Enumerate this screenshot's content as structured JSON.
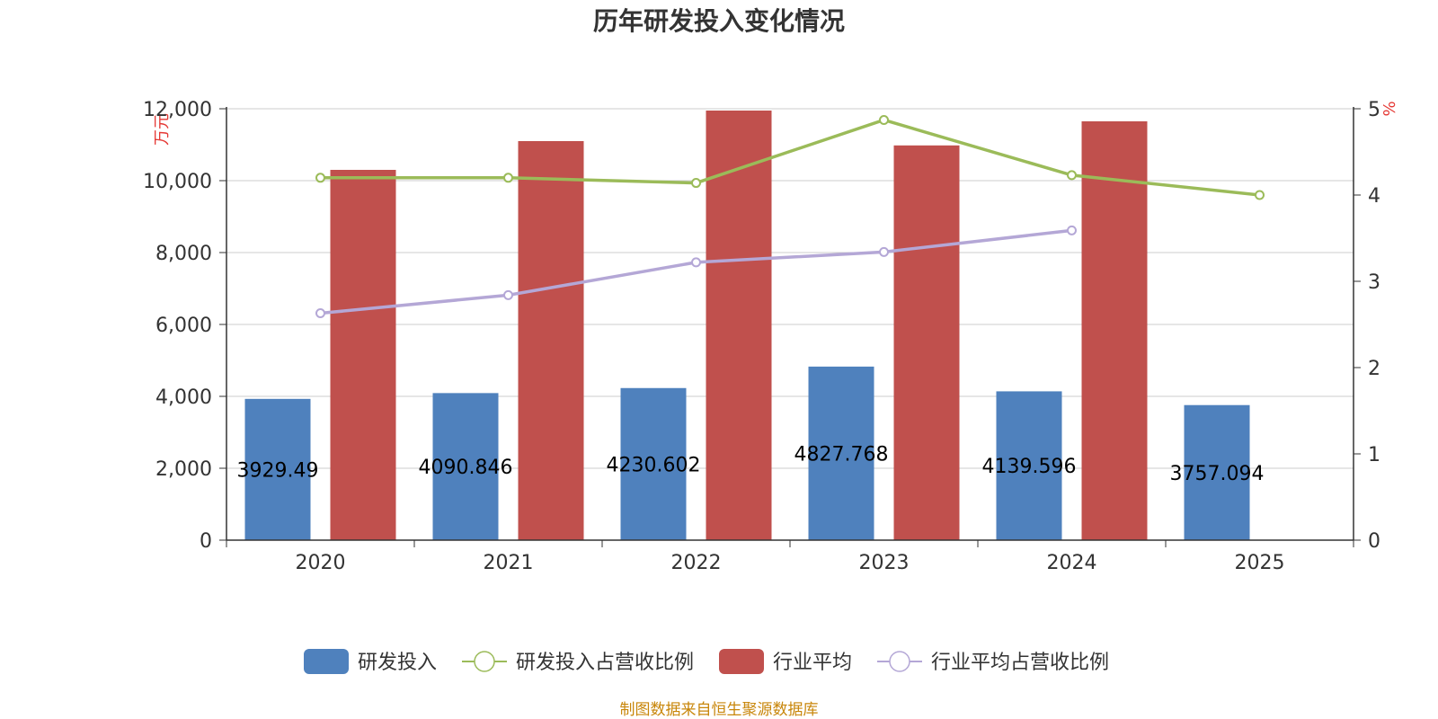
{
  "chart_data": {
    "type": "bar",
    "title": "历年研发投入变化情况",
    "categories": [
      "2020",
      "2021",
      "2022",
      "2023",
      "2024",
      "2025"
    ],
    "y_left": {
      "unit": "万元",
      "ylim": [
        0,
        12000
      ],
      "ticks": [
        "0",
        "2,000",
        "4,000",
        "6,000",
        "8,000",
        "10,000",
        "12,000"
      ]
    },
    "y_right": {
      "unit": "%",
      "ylim": [
        0,
        5
      ],
      "ticks": [
        "0",
        "1",
        "2",
        "3",
        "4",
        "5"
      ]
    },
    "grid": true,
    "legend_position": "bottom",
    "bars": [
      {
        "name": "研发投入",
        "color": "#4f81bd",
        "axis": "left",
        "values": [
          3929.49,
          4090.846,
          4230.602,
          4827.768,
          4139.596,
          3757.094
        ],
        "labels": [
          "3929.49",
          "4090.846",
          "4230.602",
          "4827.768",
          "4139.596",
          "3757.094"
        ]
      },
      {
        "name": "行业平均",
        "color": "#c0504d",
        "axis": "left",
        "values": [
          10300,
          11100,
          11950,
          10980,
          11650,
          null
        ]
      }
    ],
    "lines": [
      {
        "name": "研发投入占营收比例",
        "color": "#9bbb59",
        "axis": "right",
        "values": [
          4.2,
          4.2,
          4.14,
          4.87,
          4.23,
          4.0
        ]
      },
      {
        "name": "行业平均占营收比例",
        "color": "#b4a7d6",
        "axis": "right",
        "values": [
          2.63,
          2.84,
          3.22,
          3.34,
          3.59,
          null
        ]
      }
    ],
    "source": "制图数据来自恒生聚源数据库"
  }
}
